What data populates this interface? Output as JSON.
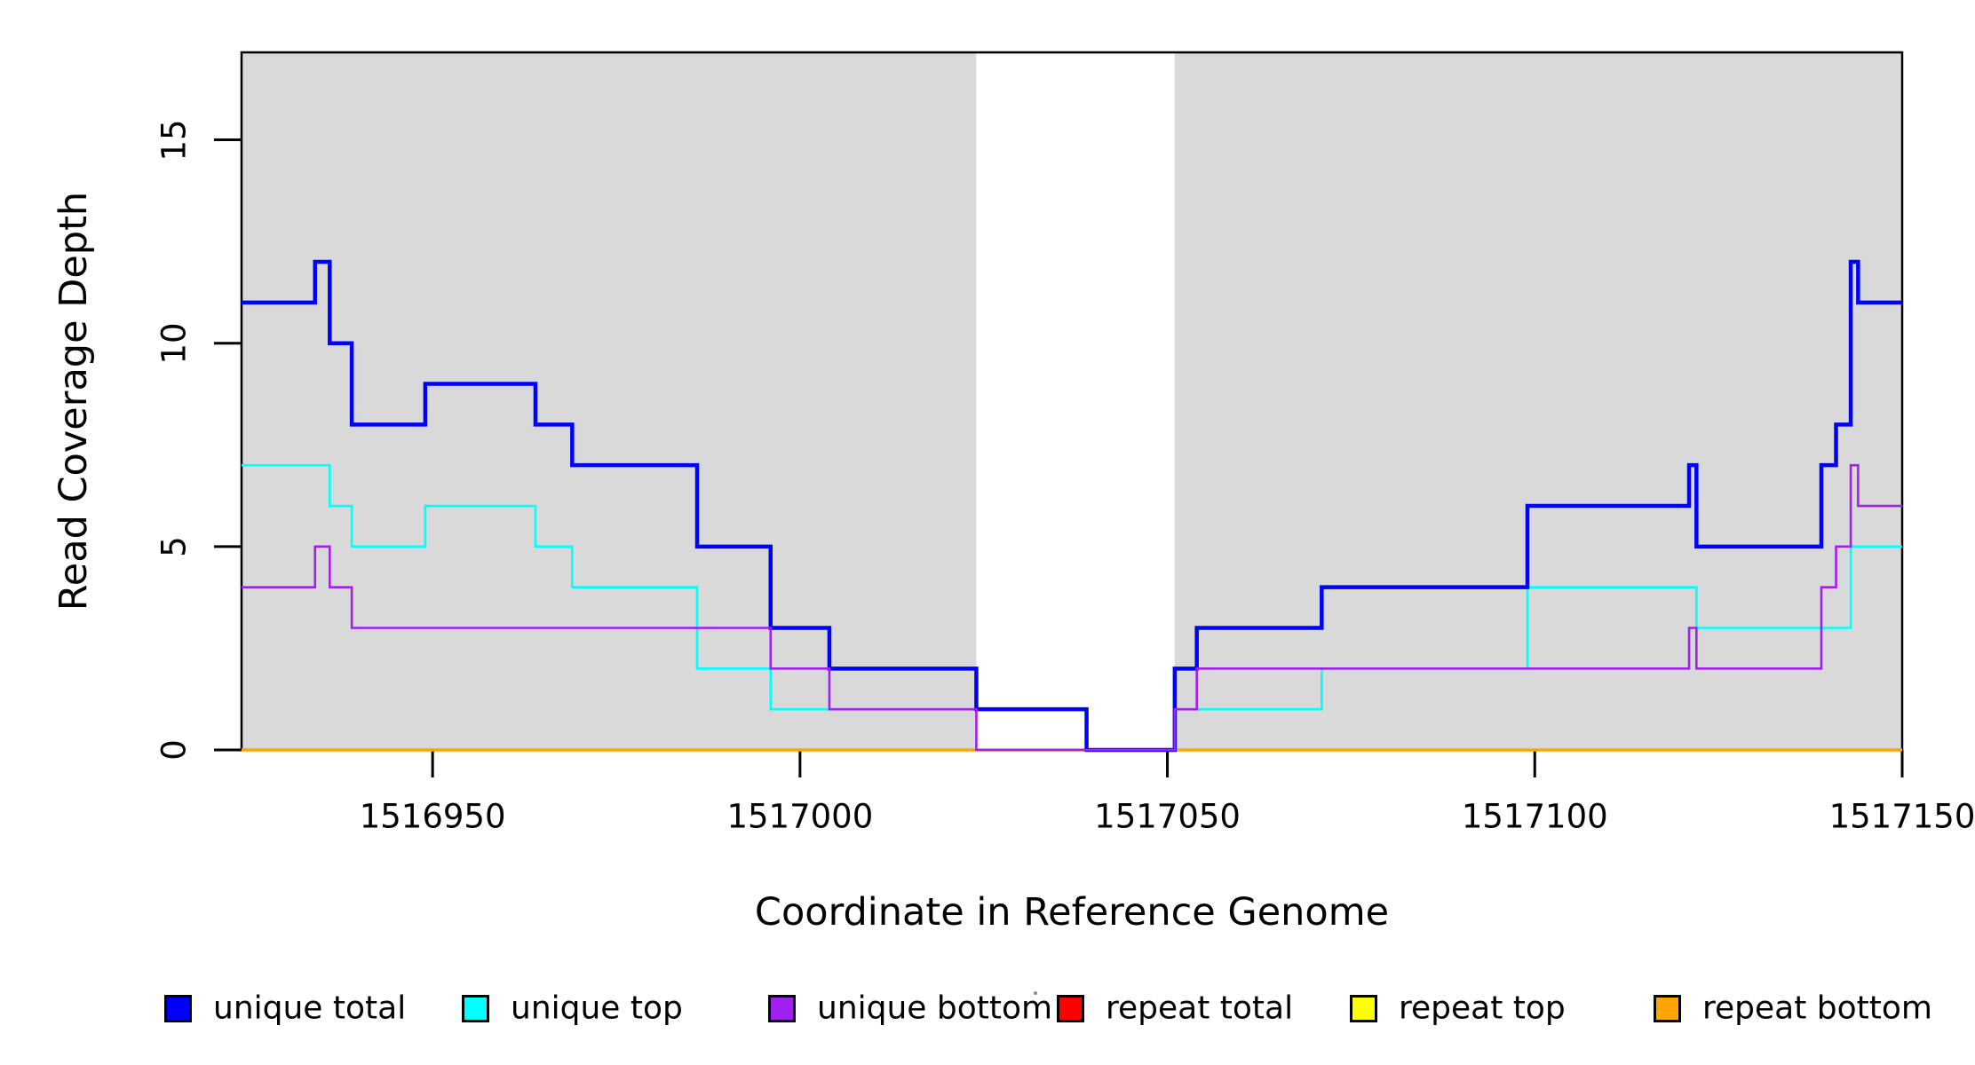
{
  "chart_data": {
    "type": "line",
    "subtype": "step-coverage",
    "title": "",
    "xlabel": "Coordinate in Reference Genome",
    "ylabel": "Read Coverage Depth",
    "xlim": [
      1516924,
      1517150
    ],
    "ylim": [
      0,
      17.15
    ],
    "x_ticks": [
      1516950,
      1517000,
      1517050,
      1517100,
      1517150
    ],
    "y_ticks": [
      0,
      5,
      10,
      15
    ],
    "grid": false,
    "plot_background_color": "#ffffff",
    "shaded_region_color": "#d9d9d9",
    "shaded_regions": [
      [
        1516924,
        1517024
      ],
      [
        1517051,
        1517150
      ]
    ],
    "series": [
      {
        "name": "unique total",
        "color": "#0000ff",
        "line_width": 4.5,
        "steps": [
          [
            1516924,
            11
          ],
          [
            1516934,
            12
          ],
          [
            1516936,
            10
          ],
          [
            1516939,
            8
          ],
          [
            1516949,
            9
          ],
          [
            1516964,
            8
          ],
          [
            1516969,
            7
          ],
          [
            1516986,
            5
          ],
          [
            1516996,
            3
          ],
          [
            1517004,
            2
          ],
          [
            1517024,
            1
          ],
          [
            1517039,
            0
          ],
          [
            1517051,
            2
          ],
          [
            1517054,
            3
          ],
          [
            1517071,
            4
          ],
          [
            1517099,
            6
          ],
          [
            1517121,
            7
          ],
          [
            1517122,
            5
          ],
          [
            1517139,
            7
          ],
          [
            1517141,
            8
          ],
          [
            1517143,
            12
          ],
          [
            1517144,
            11
          ]
        ]
      },
      {
        "name": "unique top",
        "color": "#00ffff",
        "line_width": 2.6,
        "steps": [
          [
            1516924,
            7
          ],
          [
            1516936,
            6
          ],
          [
            1516939,
            5
          ],
          [
            1516949,
            6
          ],
          [
            1516964,
            5
          ],
          [
            1516969,
            4
          ],
          [
            1516986,
            2
          ],
          [
            1516996,
            1
          ],
          [
            1517039,
            0
          ],
          [
            1517051,
            1
          ],
          [
            1517071,
            2
          ],
          [
            1517099,
            4
          ],
          [
            1517122,
            3
          ],
          [
            1517143,
            5
          ]
        ]
      },
      {
        "name": "unique bottom",
        "color": "#a020f0",
        "line_width": 2.6,
        "steps": [
          [
            1516924,
            4
          ],
          [
            1516934,
            5
          ],
          [
            1516936,
            4
          ],
          [
            1516939,
            3
          ],
          [
            1516996,
            2
          ],
          [
            1517004,
            1
          ],
          [
            1517024,
            0
          ],
          [
            1517051,
            1
          ],
          [
            1517054,
            2
          ],
          [
            1517121,
            3
          ],
          [
            1517122,
            2
          ],
          [
            1517139,
            4
          ],
          [
            1517141,
            5
          ],
          [
            1517143,
            7
          ],
          [
            1517144,
            6
          ]
        ]
      },
      {
        "name": "repeat total",
        "color": "#ff0000",
        "line_width": 2.6,
        "steps": [
          [
            1516924,
            0
          ]
        ]
      },
      {
        "name": "repeat top",
        "color": "#ffff00",
        "line_width": 2.6,
        "steps": [
          [
            1516924,
            0
          ]
        ]
      },
      {
        "name": "repeat bottom",
        "color": "#ffa500",
        "line_width": 3.6,
        "steps": [
          [
            1516924,
            0
          ]
        ]
      }
    ],
    "draw_order": [
      3,
      4,
      5,
      1,
      0,
      2
    ],
    "legend": {
      "position": "bottom",
      "items": [
        {
          "label": "unique total",
          "color": "#0000ff"
        },
        {
          "label": "unique top",
          "color": "#00ffff"
        },
        {
          "label": "unique bottom",
          "color": "#a020f0"
        },
        {
          "label": "repeat total",
          "color": "#ff0000"
        },
        {
          "label": "repeat top",
          "color": "#ffff00"
        },
        {
          "label": "repeat bottom",
          "color": "#ffa500"
        }
      ]
    }
  }
}
